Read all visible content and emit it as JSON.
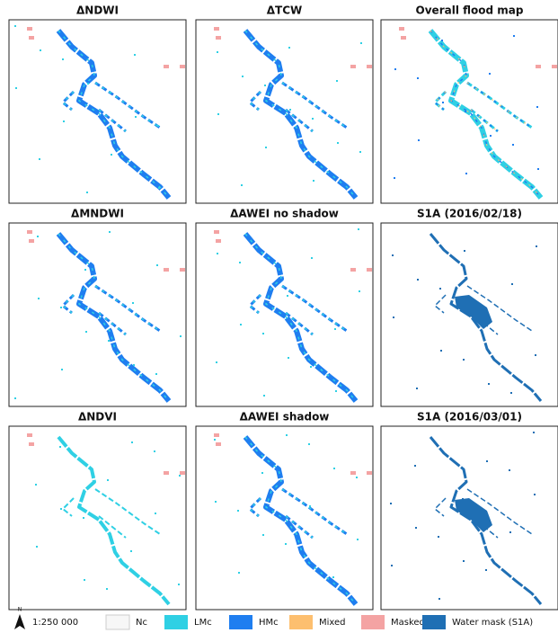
{
  "panels": [
    {
      "title": "ΔNDWI"
    },
    {
      "title": "ΔTCW"
    },
    {
      "title": "Overall flood map"
    },
    {
      "title": "ΔMNDWI"
    },
    {
      "title": "ΔAWEI no shadow"
    },
    {
      "title": "S1A (2016/02/18)"
    },
    {
      "title": "ΔNDVI"
    },
    {
      "title": "ΔAWEI  shadow"
    },
    {
      "title": "S1A (2016/03/01)"
    }
  ],
  "scale": {
    "north": "N",
    "label": "1:250 000"
  },
  "legend": [
    {
      "name": "Nc",
      "color": "#f7f7f7"
    },
    {
      "name": "LMc",
      "color": "#2fd0e4"
    },
    {
      "name": "HMc",
      "color": "#1f7ef0"
    },
    {
      "name": "Mixed",
      "color": "#fdbf6f"
    },
    {
      "name": "Masked",
      "color": "#f4a3a3"
    },
    {
      "name": "Water mask (S1A)",
      "color": "#1f6fb4"
    }
  ]
}
